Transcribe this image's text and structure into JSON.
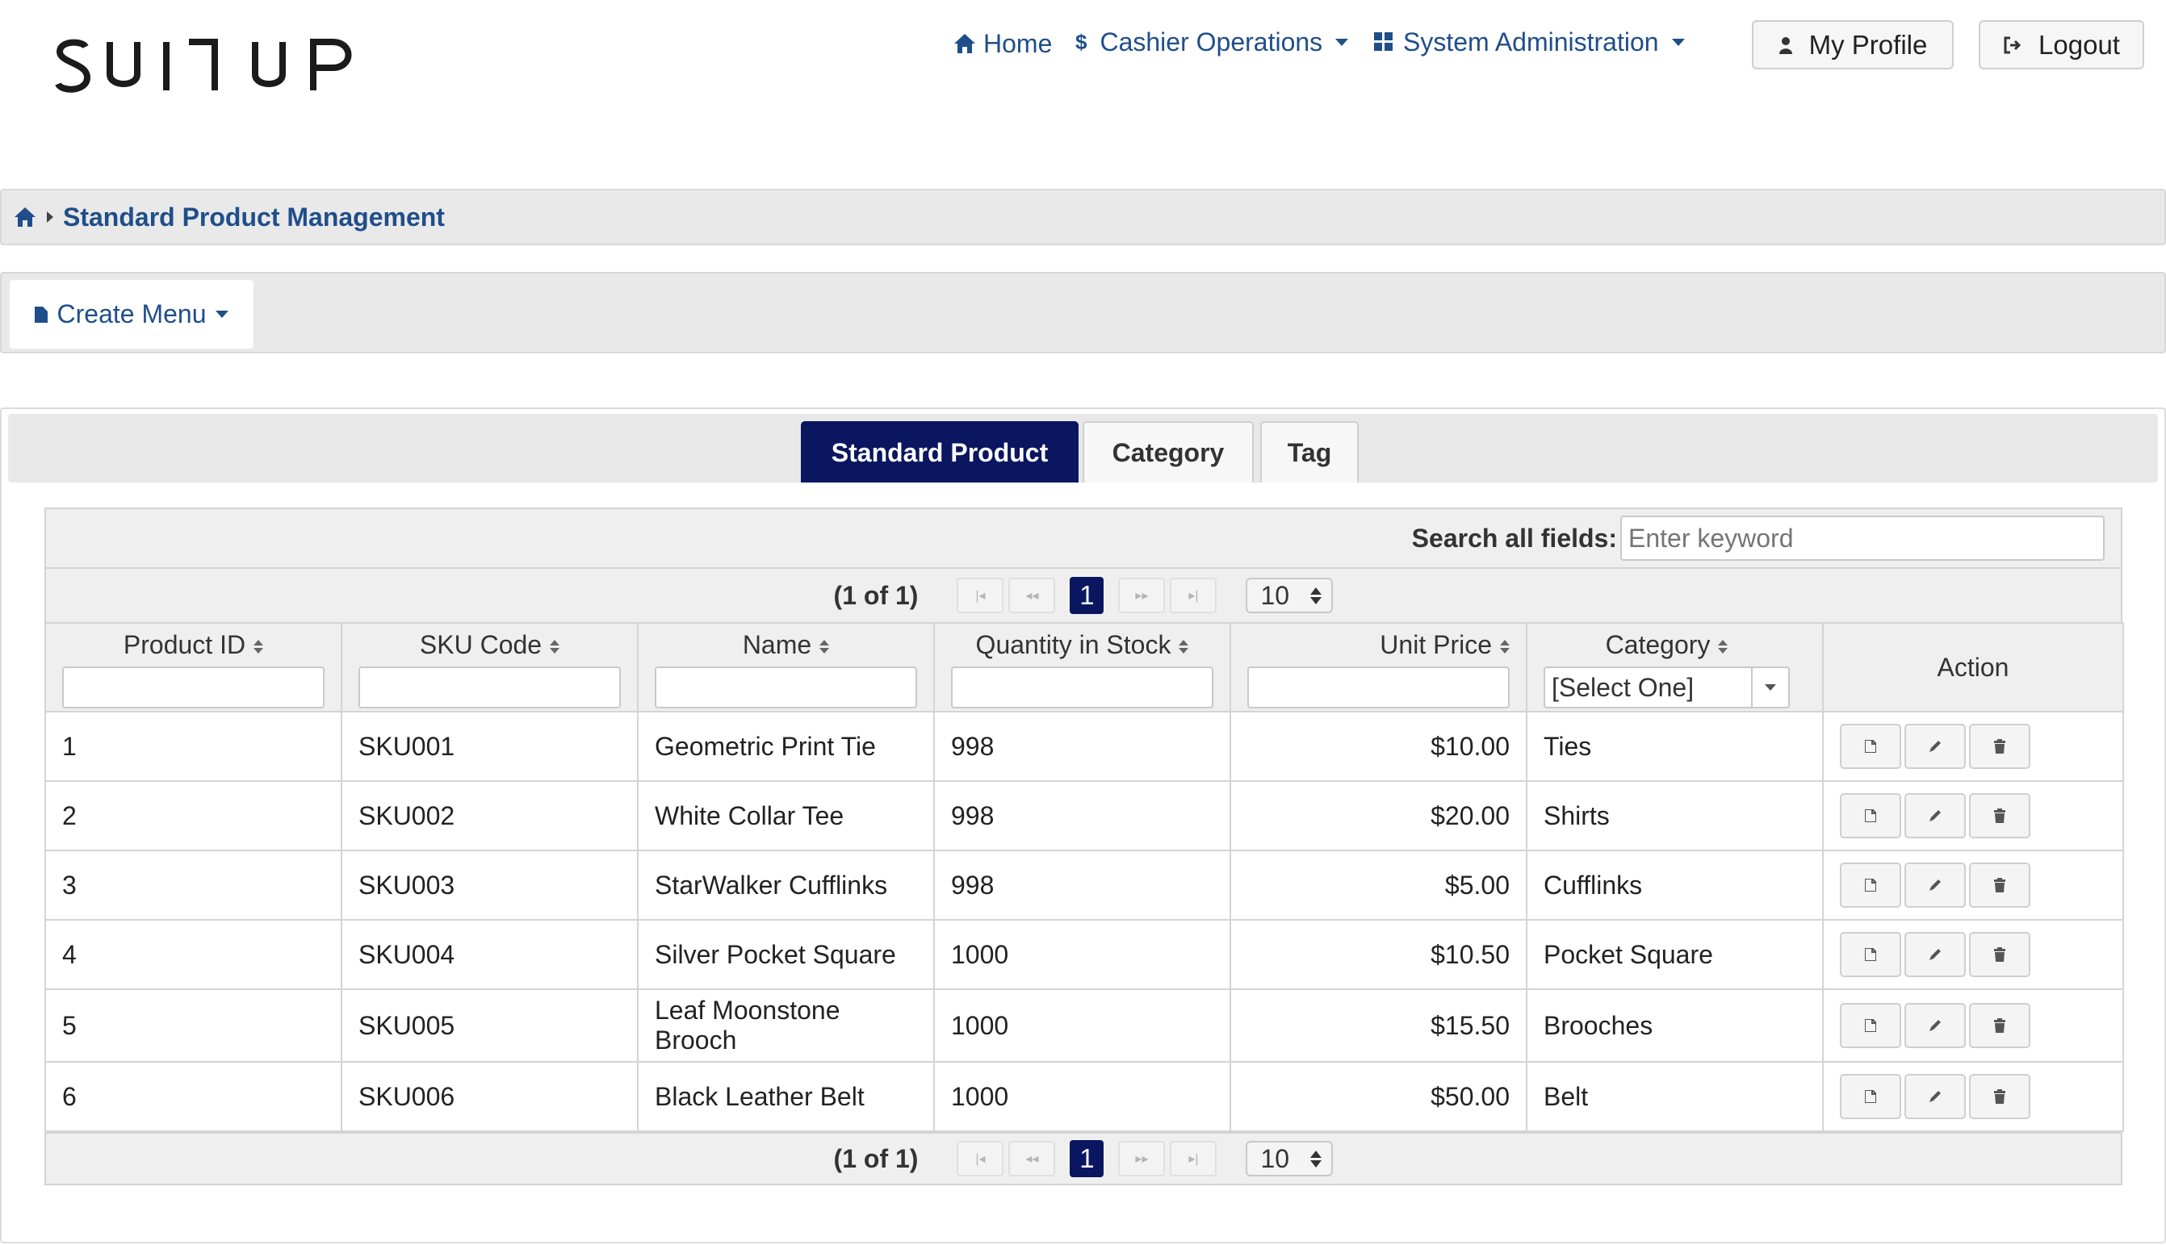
{
  "brand": {
    "logo_text": "SUITUP"
  },
  "nav": {
    "home": "Home",
    "cashier": "Cashier Operations",
    "sysadmin": "System Administration",
    "profile": "My Profile",
    "logout": "Logout"
  },
  "breadcrumb": {
    "current": "Standard Product Management"
  },
  "create_menu": {
    "label": "Create Menu"
  },
  "tabs": [
    {
      "label": "Standard Product",
      "active": true
    },
    {
      "label": "Category",
      "active": false
    },
    {
      "label": "Tag",
      "active": false
    }
  ],
  "search": {
    "label": "Search all fields:",
    "placeholder": "Enter keyword",
    "value": ""
  },
  "pagination": {
    "status": "(1 of 1)",
    "current_page": "1",
    "rows_per_page": "10"
  },
  "table": {
    "columns": [
      "Product ID",
      "SKU Code",
      "Name",
      "Quantity in Stock",
      "Unit Price",
      "Category",
      "Action"
    ],
    "category_filter": "[Select One]",
    "rows": [
      {
        "id": "1",
        "sku": "SKU001",
        "name": "Geometric Print Tie",
        "qty": "998",
        "price": "$10.00",
        "category": "Ties"
      },
      {
        "id": "2",
        "sku": "SKU002",
        "name": "White Collar Tee",
        "qty": "998",
        "price": "$20.00",
        "category": "Shirts"
      },
      {
        "id": "3",
        "sku": "SKU003",
        "name": "StarWalker Cufflinks",
        "qty": "998",
        "price": "$5.00",
        "category": "Cufflinks"
      },
      {
        "id": "4",
        "sku": "SKU004",
        "name": "Silver Pocket Square",
        "qty": "1000",
        "price": "$10.50",
        "category": "Pocket Square"
      },
      {
        "id": "5",
        "sku": "SKU005",
        "name": "Leaf Moonstone Brooch",
        "qty": "1000",
        "price": "$15.50",
        "category": "Brooches"
      },
      {
        "id": "6",
        "sku": "SKU006",
        "name": "Black Leather Belt",
        "qty": "1000",
        "price": "$50.00",
        "category": "Belt"
      }
    ]
  },
  "icons": {
    "home": "home-icon",
    "cashier": "dollar-icon",
    "sysadmin": "grid-icon",
    "profile": "user-icon",
    "logout": "sign-out-icon",
    "breadcrumb_home": "home-icon",
    "create_menu": "file-icon",
    "row_actions": [
      "view-icon",
      "edit-icon",
      "delete-icon"
    ]
  },
  "colors": {
    "accent": "#0a1660",
    "link": "#1f4e8a"
  }
}
